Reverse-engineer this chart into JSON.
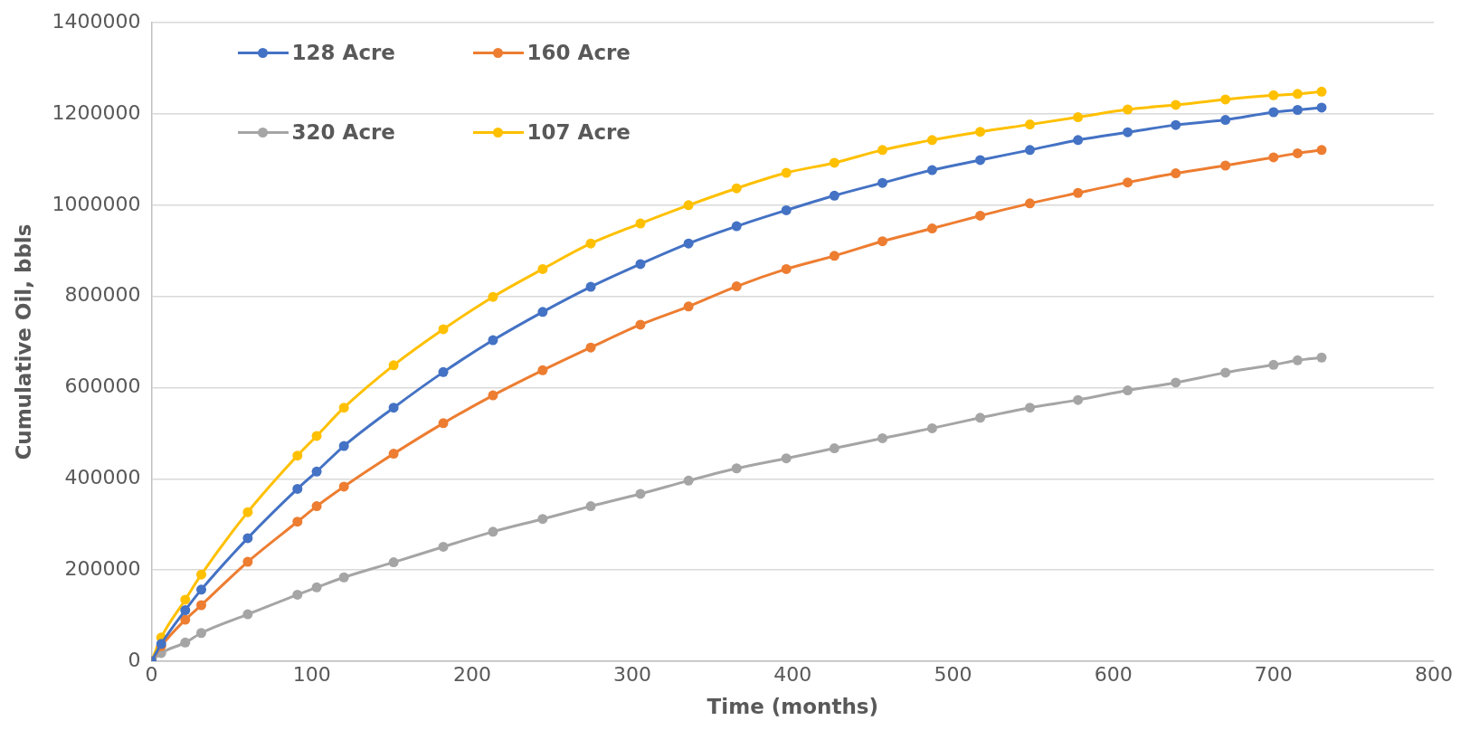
{
  "chart_data": {
    "type": "line",
    "xlabel": "Time (months)",
    "ylabel": "Cumulative Oil, bbls",
    "x": [
      0,
      6,
      21,
      31,
      60,
      91,
      103,
      120,
      151,
      182,
      213,
      244,
      274,
      305,
      335,
      365,
      396,
      426,
      456,
      487,
      517,
      548,
      578,
      609,
      639,
      670,
      700,
      715,
      730
    ],
    "series": [
      {
        "name": "128 Acre",
        "color": "#4472c4",
        "values": [
          0,
          38000,
          112000,
          157000,
          270000,
          378000,
          416000,
          472000,
          556000,
          634000,
          704000,
          766000,
          821000,
          871000,
          916000,
          954000,
          989000,
          1021000,
          1049000,
          1077000,
          1099000,
          1121000,
          1143000,
          1160000,
          1176000,
          1187000,
          1204000,
          1209000,
          1214000
        ]
      },
      {
        "name": "160 Acre",
        "color": "#ed7d31",
        "values": [
          0,
          33000,
          91000,
          123000,
          218000,
          306000,
          340000,
          383000,
          455000,
          522000,
          583000,
          638000,
          688000,
          738000,
          778000,
          822000,
          860000,
          889000,
          921000,
          949000,
          977000,
          1004000,
          1027000,
          1050000,
          1070000,
          1087000,
          1105000,
          1114000,
          1121000
        ]
      },
      {
        "name": "320 Acre",
        "color": "#a5a5a5",
        "values": [
          0,
          18000,
          41000,
          62000,
          103000,
          146000,
          162000,
          184000,
          217000,
          251000,
          284000,
          312000,
          340000,
          367000,
          396000,
          423000,
          445000,
          467000,
          489000,
          511000,
          534000,
          556000,
          573000,
          594000,
          611000,
          633000,
          650000,
          660000,
          666000
        ]
      },
      {
        "name": "107 Acre",
        "color": "#ffc000",
        "values": [
          0,
          52000,
          135000,
          190000,
          327000,
          451000,
          494000,
          556000,
          649000,
          728000,
          799000,
          860000,
          916000,
          960000,
          1000000,
          1037000,
          1071000,
          1093000,
          1121000,
          1143000,
          1161000,
          1177000,
          1193000,
          1210000,
          1220000,
          1232000,
          1241000,
          1244000,
          1249000
        ]
      }
    ],
    "xlim": [
      0,
      800
    ],
    "xticks": [
      0,
      100,
      200,
      300,
      400,
      500,
      600,
      700,
      800
    ],
    "ylim": [
      0,
      1400000
    ],
    "yticks": [
      0,
      200000,
      400000,
      600000,
      800000,
      1000000,
      1200000,
      1400000
    ],
    "grid": "y",
    "legend": "top left",
    "marker": "circle",
    "line_style": "solid"
  }
}
